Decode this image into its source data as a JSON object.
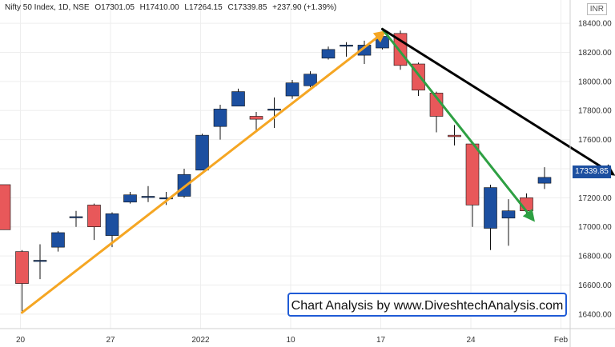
{
  "header": {
    "symbol": "Nifty 50 Index, 1D, NSE",
    "open": "O17301.05",
    "high": "H17410.00",
    "low": "L17264.15",
    "close": "C17339.85",
    "change": "+237.90 (+1.39%)"
  },
  "currency": "INR",
  "last_price": "17339.85",
  "watermark": "Chart Analysis by www.DiveshtechAnalysis.com",
  "colors": {
    "up": "#1c4fa0",
    "down": "#e8585a",
    "uptrend_line": "#f5a623",
    "downtrend_line_green": "#2ea043",
    "downtrend_line_black": "#000000"
  },
  "chart_data": {
    "type": "candlestick",
    "ylim": [
      16300,
      18560
    ],
    "y_ticks": [
      16400,
      16600,
      16800,
      17000,
      17200,
      17400,
      17600,
      17800,
      18000,
      18200,
      18400
    ],
    "x_ticks": [
      "20",
      "27",
      "2022",
      "10",
      "17",
      "24",
      "Feb"
    ],
    "candles": [
      {
        "o": 17290,
        "h": 17290,
        "l": 16980,
        "c": 16980
      },
      {
        "o": 16830,
        "h": 16840,
        "l": 16410,
        "c": 16610
      },
      {
        "o": 16770,
        "h": 16880,
        "l": 16640,
        "c": 16770
      },
      {
        "o": 16860,
        "h": 16970,
        "l": 16830,
        "c": 16960
      },
      {
        "o": 17070,
        "h": 17110,
        "l": 17000,
        "c": 17070
      },
      {
        "o": 17150,
        "h": 17160,
        "l": 16910,
        "c": 17000
      },
      {
        "o": 16940,
        "h": 17100,
        "l": 16860,
        "c": 17090
      },
      {
        "o": 17170,
        "h": 17240,
        "l": 17160,
        "c": 17220
      },
      {
        "o": 17210,
        "h": 17280,
        "l": 17170,
        "c": 17210
      },
      {
        "o": 17200,
        "h": 17240,
        "l": 17150,
        "c": 17200
      },
      {
        "o": 17210,
        "h": 17400,
        "l": 17200,
        "c": 17360
      },
      {
        "o": 17390,
        "h": 17640,
        "l": 17390,
        "c": 17630
      },
      {
        "o": 17690,
        "h": 17840,
        "l": 17600,
        "c": 17810
      },
      {
        "o": 17830,
        "h": 17950,
        "l": 17830,
        "c": 17930
      },
      {
        "o": 17760,
        "h": 17790,
        "l": 17650,
        "c": 17740
      },
      {
        "o": 17810,
        "h": 17890,
        "l": 17680,
        "c": 17810
      },
      {
        "o": 17900,
        "h": 18010,
        "l": 17880,
        "c": 17990
      },
      {
        "o": 17970,
        "h": 18070,
        "l": 17960,
        "c": 18050
      },
      {
        "o": 18160,
        "h": 18240,
        "l": 18150,
        "c": 18220
      },
      {
        "o": 18250,
        "h": 18270,
        "l": 18170,
        "c": 18250
      },
      {
        "o": 18180,
        "h": 18280,
        "l": 18120,
        "c": 18250
      },
      {
        "o": 18230,
        "h": 18340,
        "l": 18220,
        "c": 18310
      },
      {
        "o": 18330,
        "h": 18350,
        "l": 18080,
        "c": 18110
      },
      {
        "o": 18120,
        "h": 18130,
        "l": 17900,
        "c": 17940
      },
      {
        "o": 17920,
        "h": 17930,
        "l": 17650,
        "c": 17760
      },
      {
        "o": 17630,
        "h": 17700,
        "l": 17560,
        "c": 17620
      },
      {
        "o": 17570,
        "h": 17570,
        "l": 17000,
        "c": 17150
      },
      {
        "o": 16990,
        "h": 17290,
        "l": 16840,
        "c": 17270
      },
      {
        "o": 17060,
        "h": 17190,
        "l": 16870,
        "c": 17110
      },
      {
        "o": 17200,
        "h": 17230,
        "l": 17090,
        "c": 17110
      },
      {
        "o": 17300,
        "h": 17410,
        "l": 17260,
        "c": 17340
      }
    ],
    "trend_lines": [
      {
        "name": "uptrend",
        "from": {
          "candle": 1,
          "y": 16410
        },
        "to": {
          "candle": 21,
          "y": 18330
        },
        "color": "#f5a623"
      },
      {
        "name": "downtrend-green",
        "from": {
          "candle": 21,
          "y": 18360
        },
        "to": {
          "candle": 29.3,
          "y": 17060
        },
        "color": "#2ea043"
      },
      {
        "name": "downtrend-black",
        "from": {
          "candle": 21,
          "y": 18360
        },
        "to": {
          "candle": 33.7,
          "y": 17370
        },
        "color": "#000000"
      }
    ]
  }
}
